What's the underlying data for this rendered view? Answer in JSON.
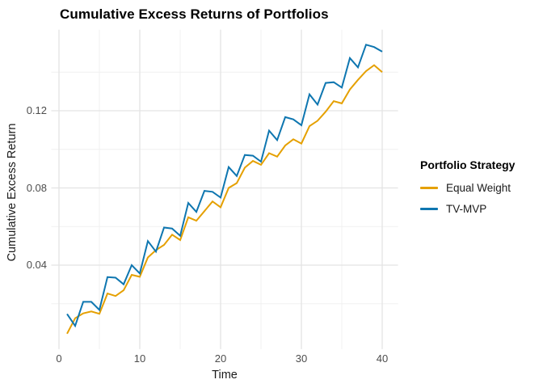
{
  "title": "Cumulative Excess Returns of Portfolios",
  "axes": {
    "x_label": "Time",
    "y_label": "Cumulative Excess Return",
    "x_tick_labels": [
      "0",
      "10",
      "20",
      "30",
      "40"
    ],
    "y_tick_labels": [
      "0.04",
      "0.08",
      "0.12"
    ]
  },
  "legend": {
    "title": "Portfolio Strategy",
    "position": "right",
    "items": [
      {
        "label": "Equal Weight",
        "color": "#E5A000"
      },
      {
        "label": "TV-MVP",
        "color": "#0E76B0"
      }
    ]
  },
  "colors": {
    "background": "#ffffff",
    "grid_major": "#e3e3e3",
    "grid_minor": "#f0f0f0",
    "tick_text": "#4d4d4d",
    "axis_title_text": "#1a1a1a",
    "title_text": "#000000"
  },
  "chart_data": {
    "type": "line",
    "title": "Cumulative Excess Returns of Portfolios",
    "xlabel": "Time",
    "ylabel": "Cumulative Excess Return",
    "legend_title": "Portfolio Strategy",
    "legend_position": "right",
    "grid": true,
    "xlim": [
      -0.95,
      41.95
    ],
    "ylim": [
      -0.0035,
      0.162
    ],
    "x_ticks": [
      0,
      10,
      20,
      30,
      40
    ],
    "y_ticks": [
      0.04,
      0.08,
      0.12
    ],
    "x_minor_ticks": [
      5,
      15,
      25,
      35
    ],
    "y_minor_ticks": [
      0.02,
      0.06,
      0.1,
      0.14
    ],
    "x": [
      1,
      2,
      3,
      4,
      5,
      6,
      7,
      8,
      9,
      10,
      11,
      12,
      13,
      14,
      15,
      16,
      17,
      18,
      19,
      20,
      21,
      22,
      23,
      24,
      25,
      26,
      27,
      28,
      29,
      30,
      31,
      32,
      33,
      34,
      35,
      36,
      37,
      38,
      39,
      40
    ],
    "series": [
      {
        "name": "Equal Weight",
        "color": "#E5A000",
        "values": [
          0.0045,
          0.0125,
          0.015,
          0.016,
          0.0148,
          0.0253,
          0.024,
          0.027,
          0.035,
          0.034,
          0.044,
          0.0478,
          0.0505,
          0.0558,
          0.053,
          0.0648,
          0.063,
          0.068,
          0.073,
          0.07,
          0.08,
          0.0825,
          0.0905,
          0.094,
          0.092,
          0.098,
          0.0962,
          0.102,
          0.1052,
          0.103,
          0.112,
          0.1148,
          0.1195,
          0.125,
          0.1238,
          0.131,
          0.136,
          0.1405,
          0.1436,
          0.14
        ]
      },
      {
        "name": "TV-MVP",
        "color": "#0E76B0",
        "values": [
          0.0147,
          0.0085,
          0.021,
          0.021,
          0.0168,
          0.0338,
          0.0335,
          0.0301,
          0.04,
          0.0357,
          0.0525,
          0.047,
          0.0595,
          0.059,
          0.0552,
          0.0722,
          0.0676,
          0.0785,
          0.078,
          0.075,
          0.0908,
          0.0862,
          0.0971,
          0.0967,
          0.0936,
          0.1097,
          0.1048,
          0.1167,
          0.1155,
          0.1125,
          0.1285,
          0.1232,
          0.1344,
          0.1348,
          0.132,
          0.1473,
          0.1425,
          0.1542,
          0.153,
          0.1506
        ]
      }
    ]
  }
}
